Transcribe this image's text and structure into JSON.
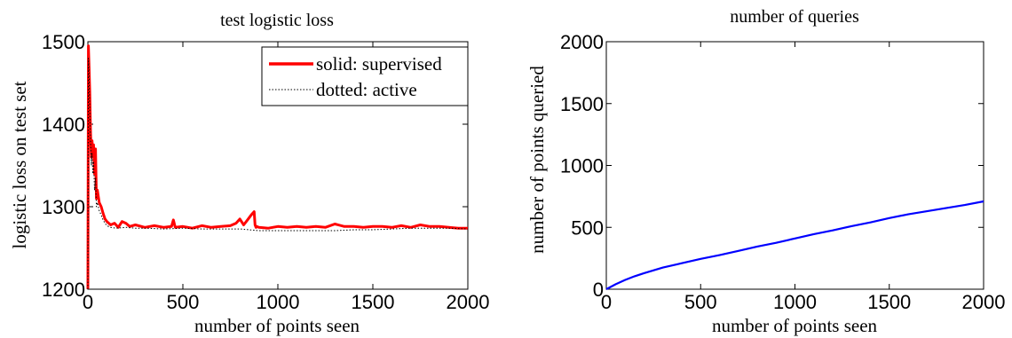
{
  "chart_data": [
    {
      "type": "line",
      "title": "test logistic loss",
      "xlabel": "number of points seen",
      "ylabel": "logistic loss on test set",
      "xlim": [
        0,
        2000
      ],
      "ylim": [
        1200,
        1500
      ],
      "xticks": [
        "0",
        "500",
        "1000",
        "1500",
        "2000"
      ],
      "yticks": [
        "1200",
        "1300",
        "1400",
        "1500"
      ],
      "legend_position": "top-right",
      "series": [
        {
          "name": "solid: supervised",
          "color": "#ff0000",
          "style": "solid",
          "x": [
            0,
            3,
            6,
            10,
            14,
            18,
            22,
            26,
            30,
            35,
            40,
            45,
            50,
            60,
            70,
            80,
            90,
            100,
            120,
            140,
            160,
            180,
            200,
            220,
            250,
            300,
            350,
            400,
            440,
            450,
            460,
            500,
            550,
            600,
            650,
            700,
            750,
            780,
            800,
            820,
            840,
            860,
            875,
            880,
            885,
            890,
            900,
            950,
            1000,
            1050,
            1100,
            1150,
            1200,
            1250,
            1300,
            1350,
            1400,
            1450,
            1500,
            1550,
            1600,
            1650,
            1700,
            1750,
            1800,
            1850,
            1900,
            1950,
            2000
          ],
          "y": [
            1200,
            1495,
            1470,
            1440,
            1390,
            1360,
            1380,
            1365,
            1375,
            1340,
            1370,
            1310,
            1320,
            1305,
            1300,
            1292,
            1285,
            1282,
            1278,
            1280,
            1275,
            1282,
            1280,
            1276,
            1278,
            1275,
            1277,
            1275,
            1276,
            1284,
            1275,
            1276,
            1274,
            1277,
            1275,
            1276,
            1277,
            1280,
            1285,
            1278,
            1284,
            1290,
            1294,
            1278,
            1275,
            1276,
            1275,
            1274,
            1276,
            1275,
            1276,
            1275,
            1276,
            1275,
            1279,
            1276,
            1276,
            1275,
            1276,
            1276,
            1275,
            1277,
            1275,
            1278,
            1276,
            1276,
            1275,
            1274,
            1274
          ]
        },
        {
          "name": "dotted: active",
          "color": "#000000",
          "style": "dotted",
          "x": [
            0,
            3,
            6,
            10,
            14,
            18,
            22,
            26,
            30,
            35,
            40,
            45,
            50,
            60,
            70,
            80,
            90,
            100,
            120,
            150,
            200,
            250,
            300,
            400,
            500,
            600,
            700,
            800,
            850,
            900,
            1000,
            1100,
            1200,
            1300,
            1400,
            1500,
            1600,
            1700,
            1800,
            1900,
            2000
          ],
          "y": [
            1200,
            1480,
            1460,
            1420,
            1380,
            1350,
            1365,
            1340,
            1355,
            1320,
            1335,
            1300,
            1305,
            1295,
            1290,
            1284,
            1280,
            1277,
            1275,
            1274,
            1275,
            1274,
            1274,
            1273,
            1274,
            1273,
            1273,
            1273,
            1272,
            1271,
            1271,
            1271,
            1271,
            1271,
            1272,
            1272,
            1273,
            1274,
            1274,
            1274,
            1273
          ]
        }
      ]
    },
    {
      "type": "line",
      "title": "number of queries",
      "xlabel": "number of points seen",
      "ylabel": "number of points queried",
      "xlim": [
        0,
        2000
      ],
      "ylim": [
        0,
        2000
      ],
      "xticks": [
        "0",
        "500",
        "1000",
        "1500",
        "2000"
      ],
      "yticks": [
        "0",
        "500",
        "1000",
        "1500",
        "2000"
      ],
      "series": [
        {
          "color": "#0000ff",
          "style": "solid",
          "x": [
            0,
            50,
            100,
            150,
            200,
            300,
            400,
            500,
            600,
            700,
            800,
            900,
            1000,
            1100,
            1200,
            1300,
            1400,
            1500,
            1600,
            1700,
            1800,
            1900,
            2000
          ],
          "y": [
            0,
            40,
            75,
            105,
            130,
            175,
            210,
            245,
            275,
            310,
            345,
            375,
            410,
            445,
            475,
            510,
            540,
            575,
            605,
            630,
            655,
            680,
            710
          ]
        }
      ]
    }
  ]
}
